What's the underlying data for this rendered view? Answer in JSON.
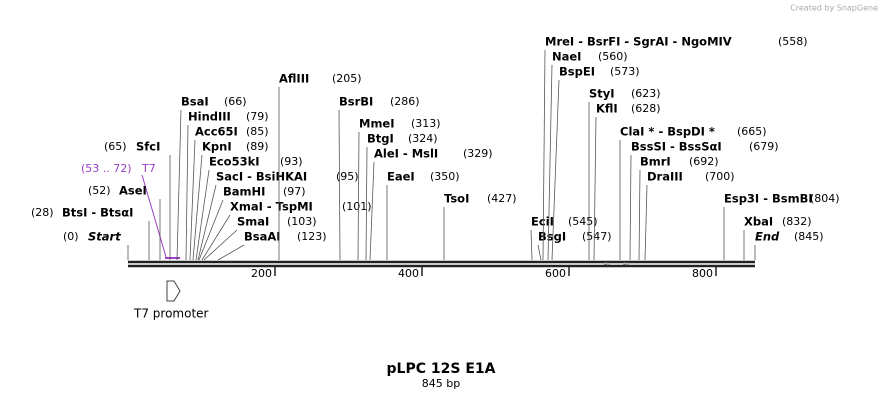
{
  "credit": "Created by SnapGene",
  "sites": [
    {
      "name": "Start",
      "position": "(0)"
    },
    {
      "name": "BtsI  -  BtsαI",
      "position": "(28)"
    },
    {
      "name": "AseI",
      "position": "(52)"
    },
    {
      "name": "SfcI",
      "position": "(65)"
    },
    {
      "name": "BsaI",
      "position": "(66)"
    },
    {
      "name": "HindIII",
      "position": "(79)"
    },
    {
      "name": "Acc65I",
      "position": "(85)"
    },
    {
      "name": "KpnI",
      "position": "(89)"
    },
    {
      "name": "Eco53kI",
      "position": "(93)"
    },
    {
      "name": "SacI  -  BsiHKAI",
      "position": "(95)"
    },
    {
      "name": "BamHI",
      "position": "(97)"
    },
    {
      "name": "XmaI  -  TspMI",
      "position": "(101)"
    },
    {
      "name": "SmaI",
      "position": "(103)"
    },
    {
      "name": "BsaAI",
      "position": "(123)"
    },
    {
      "name": "AflIII",
      "position": "(205)"
    },
    {
      "name": "BsrBI",
      "position": "(286)"
    },
    {
      "name": "MmeI",
      "position": "(313)"
    },
    {
      "name": "BtgI",
      "position": "(324)"
    },
    {
      "name": "AleI  -  MslI",
      "position": "(329)"
    },
    {
      "name": "EaeI",
      "position": "(350)"
    },
    {
      "name": "TsoI",
      "position": "(427)"
    },
    {
      "name": "EciI",
      "position": "(545)"
    },
    {
      "name": "BsgI",
      "position": "(547)"
    },
    {
      "name": "MreI  -  BsrFI  -  SgrAI  -  NgoMIV",
      "position": "(558)"
    },
    {
      "name": "NaeI",
      "position": "(560)"
    },
    {
      "name": "BspEI",
      "position": "(573)"
    },
    {
      "name": "StyI",
      "position": "(623)"
    },
    {
      "name": "KflI",
      "position": "(628)"
    },
    {
      "name": "ClaI *  -  BspDI *",
      "position": "(665)"
    },
    {
      "name": "BssSI  -  BssSαI",
      "position": "(679)"
    },
    {
      "name": "BmrI",
      "position": "(692)"
    },
    {
      "name": "DraIII",
      "position": "(700)"
    },
    {
      "name": "Esp3I  -  BsmBI",
      "position": "(804)"
    },
    {
      "name": "XbaI",
      "position": "(832)"
    },
    {
      "name": "End",
      "position": "(845)"
    }
  ],
  "feature": {
    "name": "T7",
    "range": "(53 .. 72)",
    "label": "T7 promoter"
  },
  "ruler": [
    200,
    400,
    600,
    800
  ],
  "title": "pLPC 12S E1A",
  "subtitle": "845 bp"
}
